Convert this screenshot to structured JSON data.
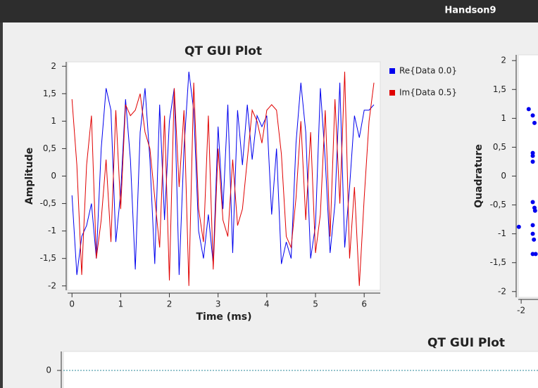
{
  "window": {
    "title": "Handson9"
  },
  "chart_data": [
    {
      "type": "line",
      "title": "QT GUI Plot",
      "xlabel": "Time (ms)",
      "ylabel": "Amplitude",
      "x": [
        0,
        0.1,
        0.2,
        0.3,
        0.4,
        0.5,
        0.6,
        0.7,
        0.8,
        0.9,
        1.0,
        1.1,
        1.2,
        1.3,
        1.4,
        1.5,
        1.6,
        1.7,
        1.8,
        1.9,
        2.0,
        2.1,
        2.2,
        2.3,
        2.4,
        2.5,
        2.6,
        2.7,
        2.8,
        2.9,
        3.0,
        3.1,
        3.2,
        3.3,
        3.4,
        3.5,
        3.6,
        3.7,
        3.8,
        3.9,
        4.0,
        4.1,
        4.2,
        4.3,
        4.4,
        4.5,
        4.6,
        4.7,
        4.8,
        4.9,
        5.0,
        5.1,
        5.2,
        5.3,
        5.4,
        5.5,
        5.6,
        5.7,
        5.8,
        5.9,
        6.0,
        6.1,
        6.2
      ],
      "series": [
        {
          "name": "Re{Data 0.0}",
          "color": "#0000ee",
          "values": [
            -0.35,
            -1.8,
            -1.1,
            -0.9,
            -0.5,
            -1.5,
            0.5,
            1.6,
            1.2,
            -1.2,
            -0.3,
            1.4,
            0.3,
            -1.7,
            0.8,
            1.6,
            0.3,
            -1.6,
            1.3,
            -0.8,
            1.0,
            1.6,
            -1.8,
            0.5,
            1.9,
            1.2,
            -1.0,
            -1.5,
            -0.7,
            -1.6,
            0.9,
            -0.6,
            1.3,
            -1.4,
            1.2,
            0.2,
            1.3,
            0.3,
            1.1,
            0.9,
            1.1,
            -0.7,
            0.5,
            -1.6,
            -1.2,
            -1.5,
            0.6,
            1.7,
            0.8,
            -1.5,
            -0.9,
            1.6,
            0.3,
            -1.4,
            -0.5,
            1.7,
            -1.3,
            -0.2,
            1.1,
            0.7,
            1.2,
            1.2,
            1.3
          ]
        },
        {
          "name": "Im{Data 0.5}",
          "color": "#e00000",
          "values": [
            1.4,
            0.2,
            -1.8,
            0.2,
            1.1,
            -1.5,
            -0.8,
            0.3,
            -1.2,
            1.2,
            -0.6,
            1.3,
            1.1,
            1.2,
            1.5,
            0.8,
            0.5,
            -0.4,
            -1.3,
            1.1,
            -1.9,
            1.6,
            -0.2,
            1.2,
            -2.0,
            1.7,
            -0.6,
            -1.2,
            1.1,
            -1.7,
            0.5,
            -0.8,
            -1.1,
            0.3,
            -0.9,
            -0.6,
            0.3,
            1.2,
            1.0,
            0.6,
            1.2,
            1.3,
            1.2,
            0.4,
            -1.1,
            -1.3,
            -0.4,
            1.0,
            -0.8,
            0.8,
            -1.4,
            -0.7,
            1.2,
            -1.1,
            1.4,
            -0.5,
            1.9,
            -1.5,
            -0.2,
            -2.0,
            -0.4,
            1.0,
            1.7
          ]
        }
      ],
      "xlim": [
        -0.09,
        6.33
      ],
      "xticks": [
        0,
        1,
        2,
        3,
        4,
        5,
        6
      ],
      "ylim": [
        -2.08,
        2.08
      ],
      "yticks": [
        2,
        {
          "value": 1.5,
          "label": "1,5"
        },
        1,
        {
          "value": 0.5,
          "label": "0,5"
        },
        0,
        {
          "value": -0.5,
          "label": "-0,5"
        },
        -1,
        {
          "value": -1.5,
          "label": "-1,5"
        },
        -2
      ]
    },
    {
      "type": "scatter",
      "ylabel": "Quadrature",
      "series": [
        {
          "color": "#0000ee",
          "x": [
            -2.04,
            -1.87,
            -1.8,
            -1.77,
            -1.8,
            -1.8,
            -1.8,
            -1.8,
            -1.77,
            -1.76,
            -1.8,
            -1.8,
            -1.78,
            -1.8,
            -1.75
          ],
          "values": [
            -0.88,
            1.16,
            1.05,
            0.92,
            0.4,
            0.35,
            0.25,
            -0.45,
            -0.55,
            -0.6,
            -0.85,
            -1.0,
            -1.1,
            -1.35,
            -1.35
          ]
        }
      ],
      "xlim": [
        -2.05,
        2.05
      ],
      "xticks": [
        -2
      ],
      "ylim": [
        -2.1,
        2.1
      ],
      "yticks": [
        2,
        {
          "value": 1.5,
          "label": "1,5"
        },
        1,
        {
          "value": 0.5,
          "label": "0,5"
        },
        0,
        {
          "value": -0.5,
          "label": "-0,5"
        },
        -1,
        {
          "value": -1.5,
          "label": "-1,5"
        },
        -2
      ]
    },
    {
      "type": "line",
      "title": "QT GUI Plot",
      "x": [
        0,
        1
      ],
      "series": [
        {
          "color": "#2a8a9a",
          "values": [
            0,
            0
          ]
        }
      ],
      "xlim": [
        0,
        1
      ],
      "ylim": [
        -1,
        1
      ],
      "yticks": [
        0
      ]
    }
  ]
}
